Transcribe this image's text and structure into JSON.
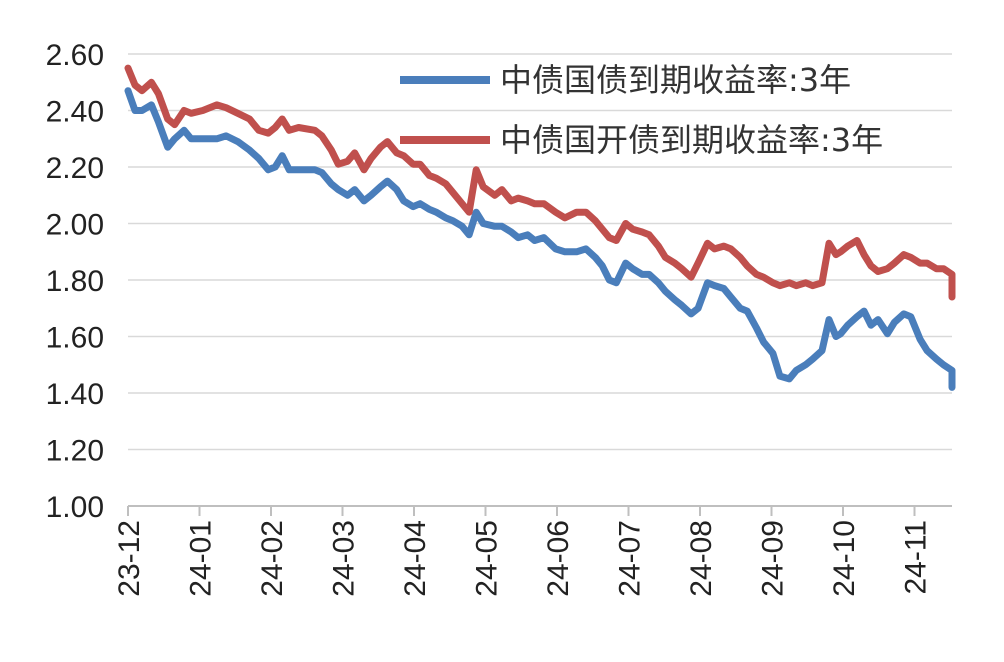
{
  "chart_data": {
    "type": "line",
    "title": "",
    "xlabel": "",
    "ylabel": "",
    "ylim": [
      1.0,
      2.6
    ],
    "yticks": [
      "1.00",
      "1.20",
      "1.40",
      "1.60",
      "1.80",
      "2.00",
      "2.20",
      "2.40",
      "2.60"
    ],
    "xticks": [
      "23-12",
      "24-01",
      "24-02",
      "24-03",
      "24-04",
      "24-05",
      "24-06",
      "24-07",
      "24-08",
      "24-09",
      "24-10",
      "24-11"
    ],
    "grid": true,
    "legend_position": "top-right",
    "series": [
      {
        "name": "中债国债到期收益率:3年",
        "color": "#4a7ebb",
        "points": [
          [
            "2023-12-01",
            2.47
          ],
          [
            "2023-12-04",
            2.4
          ],
          [
            "2023-12-07",
            2.4
          ],
          [
            "2023-12-11",
            2.42
          ],
          [
            "2023-12-14",
            2.36
          ],
          [
            "2023-12-18",
            2.27
          ],
          [
            "2023-12-21",
            2.3
          ],
          [
            "2023-12-25",
            2.33
          ],
          [
            "2023-12-28",
            2.3
          ],
          [
            "2024-01-02",
            2.3
          ],
          [
            "2024-01-08",
            2.3
          ],
          [
            "2024-01-12",
            2.31
          ],
          [
            "2024-01-17",
            2.29
          ],
          [
            "2024-01-22",
            2.26
          ],
          [
            "2024-01-26",
            2.23
          ],
          [
            "2024-01-30",
            2.19
          ],
          [
            "2024-02-02",
            2.2
          ],
          [
            "2024-02-05",
            2.24
          ],
          [
            "2024-02-08",
            2.19
          ],
          [
            "2024-02-12",
            2.19
          ],
          [
            "2024-02-19",
            2.19
          ],
          [
            "2024-02-22",
            2.18
          ],
          [
            "2024-02-26",
            2.14
          ],
          [
            "2024-02-29",
            2.12
          ],
          [
            "2024-03-04",
            2.1
          ],
          [
            "2024-03-07",
            2.12
          ],
          [
            "2024-03-11",
            2.08
          ],
          [
            "2024-03-14",
            2.1
          ],
          [
            "2024-03-18",
            2.13
          ],
          [
            "2024-03-21",
            2.15
          ],
          [
            "2024-03-25",
            2.12
          ],
          [
            "2024-03-28",
            2.08
          ],
          [
            "2024-04-01",
            2.06
          ],
          [
            "2024-04-04",
            2.07
          ],
          [
            "2024-04-08",
            2.05
          ],
          [
            "2024-04-11",
            2.04
          ],
          [
            "2024-04-15",
            2.02
          ],
          [
            "2024-04-18",
            2.01
          ],
          [
            "2024-04-22",
            1.99
          ],
          [
            "2024-04-25",
            1.96
          ],
          [
            "2024-04-28",
            2.04
          ],
          [
            "2024-05-01",
            2.0
          ],
          [
            "2024-05-06",
            1.99
          ],
          [
            "2024-05-09",
            1.99
          ],
          [
            "2024-05-13",
            1.97
          ],
          [
            "2024-05-16",
            1.95
          ],
          [
            "2024-05-20",
            1.96
          ],
          [
            "2024-05-23",
            1.94
          ],
          [
            "2024-05-27",
            1.95
          ],
          [
            "2024-06-01",
            1.91
          ],
          [
            "2024-06-05",
            1.9
          ],
          [
            "2024-06-10",
            1.9
          ],
          [
            "2024-06-14",
            1.91
          ],
          [
            "2024-06-18",
            1.88
          ],
          [
            "2024-06-21",
            1.85
          ],
          [
            "2024-06-24",
            1.8
          ],
          [
            "2024-06-27",
            1.79
          ],
          [
            "2024-07-01",
            1.86
          ],
          [
            "2024-07-04",
            1.84
          ],
          [
            "2024-07-08",
            1.82
          ],
          [
            "2024-07-11",
            1.82
          ],
          [
            "2024-07-15",
            1.79
          ],
          [
            "2024-07-18",
            1.76
          ],
          [
            "2024-07-22",
            1.73
          ],
          [
            "2024-07-25",
            1.71
          ],
          [
            "2024-07-29",
            1.68
          ],
          [
            "2024-08-01",
            1.7
          ],
          [
            "2024-08-05",
            1.79
          ],
          [
            "2024-08-08",
            1.78
          ],
          [
            "2024-08-12",
            1.77
          ],
          [
            "2024-08-15",
            1.74
          ],
          [
            "2024-08-19",
            1.7
          ],
          [
            "2024-08-22",
            1.69
          ],
          [
            "2024-08-26",
            1.63
          ],
          [
            "2024-08-29",
            1.58
          ],
          [
            "2024-09-02",
            1.54
          ],
          [
            "2024-09-05",
            1.46
          ],
          [
            "2024-09-09",
            1.45
          ],
          [
            "2024-09-12",
            1.48
          ],
          [
            "2024-09-16",
            1.5
          ],
          [
            "2024-09-19",
            1.52
          ],
          [
            "2024-09-23",
            1.55
          ],
          [
            "2024-09-26",
            1.66
          ],
          [
            "2024-09-29",
            1.6
          ],
          [
            "2024-10-01",
            1.61
          ],
          [
            "2024-10-04",
            1.64
          ],
          [
            "2024-10-08",
            1.67
          ],
          [
            "2024-10-11",
            1.69
          ],
          [
            "2024-10-14",
            1.64
          ],
          [
            "2024-10-17",
            1.66
          ],
          [
            "2024-10-21",
            1.61
          ],
          [
            "2024-10-24",
            1.65
          ],
          [
            "2024-10-28",
            1.68
          ],
          [
            "2024-10-31",
            1.67
          ],
          [
            "2024-11-04",
            1.59
          ],
          [
            "2024-11-07",
            1.55
          ],
          [
            "2024-11-11",
            1.52
          ],
          [
            "2024-11-14",
            1.5
          ],
          [
            "2024-11-18",
            1.48
          ],
          [
            "2024-11-21",
            1.46
          ],
          [
            "2024-11-25",
            1.45
          ],
          [
            "2024-11-28",
            1.46
          ],
          [
            "2024-12-02",
            1.42
          ]
        ]
      },
      {
        "name": "中债国开债到期收益率:3年",
        "color": "#c0504d",
        "points": [
          [
            "2023-12-01",
            2.55
          ],
          [
            "2023-12-04",
            2.49
          ],
          [
            "2023-12-07",
            2.47
          ],
          [
            "2023-12-11",
            2.5
          ],
          [
            "2023-12-14",
            2.46
          ],
          [
            "2023-12-18",
            2.37
          ],
          [
            "2023-12-21",
            2.35
          ],
          [
            "2023-12-25",
            2.4
          ],
          [
            "2023-12-28",
            2.39
          ],
          [
            "2024-01-02",
            2.4
          ],
          [
            "2024-01-08",
            2.42
          ],
          [
            "2024-01-12",
            2.41
          ],
          [
            "2024-01-17",
            2.39
          ],
          [
            "2024-01-22",
            2.37
          ],
          [
            "2024-01-26",
            2.33
          ],
          [
            "2024-01-30",
            2.32
          ],
          [
            "2024-02-02",
            2.34
          ],
          [
            "2024-02-05",
            2.37
          ],
          [
            "2024-02-08",
            2.33
          ],
          [
            "2024-02-12",
            2.34
          ],
          [
            "2024-02-19",
            2.33
          ],
          [
            "2024-02-22",
            2.31
          ],
          [
            "2024-02-26",
            2.26
          ],
          [
            "2024-02-29",
            2.21
          ],
          [
            "2024-03-04",
            2.22
          ],
          [
            "2024-03-07",
            2.25
          ],
          [
            "2024-03-11",
            2.19
          ],
          [
            "2024-03-14",
            2.23
          ],
          [
            "2024-03-18",
            2.27
          ],
          [
            "2024-03-21",
            2.29
          ],
          [
            "2024-03-25",
            2.25
          ],
          [
            "2024-03-28",
            2.24
          ],
          [
            "2024-04-01",
            2.21
          ],
          [
            "2024-04-04",
            2.21
          ],
          [
            "2024-04-08",
            2.17
          ],
          [
            "2024-04-11",
            2.16
          ],
          [
            "2024-04-15",
            2.14
          ],
          [
            "2024-04-18",
            2.11
          ],
          [
            "2024-04-22",
            2.07
          ],
          [
            "2024-04-25",
            2.04
          ],
          [
            "2024-04-28",
            2.19
          ],
          [
            "2024-05-01",
            2.13
          ],
          [
            "2024-05-06",
            2.1
          ],
          [
            "2024-05-09",
            2.12
          ],
          [
            "2024-05-13",
            2.08
          ],
          [
            "2024-05-16",
            2.09
          ],
          [
            "2024-05-20",
            2.08
          ],
          [
            "2024-05-23",
            2.07
          ],
          [
            "2024-05-27",
            2.07
          ],
          [
            "2024-06-01",
            2.04
          ],
          [
            "2024-06-05",
            2.02
          ],
          [
            "2024-06-10",
            2.04
          ],
          [
            "2024-06-14",
            2.04
          ],
          [
            "2024-06-18",
            2.01
          ],
          [
            "2024-06-21",
            1.98
          ],
          [
            "2024-06-24",
            1.95
          ],
          [
            "2024-06-27",
            1.94
          ],
          [
            "2024-07-01",
            2.0
          ],
          [
            "2024-07-04",
            1.98
          ],
          [
            "2024-07-08",
            1.97
          ],
          [
            "2024-07-11",
            1.96
          ],
          [
            "2024-07-15",
            1.92
          ],
          [
            "2024-07-18",
            1.88
          ],
          [
            "2024-07-22",
            1.86
          ],
          [
            "2024-07-25",
            1.84
          ],
          [
            "2024-07-29",
            1.81
          ],
          [
            "2024-08-01",
            1.86
          ],
          [
            "2024-08-05",
            1.93
          ],
          [
            "2024-08-08",
            1.91
          ],
          [
            "2024-08-12",
            1.92
          ],
          [
            "2024-08-15",
            1.91
          ],
          [
            "2024-08-19",
            1.88
          ],
          [
            "2024-08-22",
            1.85
          ],
          [
            "2024-08-26",
            1.82
          ],
          [
            "2024-08-29",
            1.81
          ],
          [
            "2024-09-02",
            1.79
          ],
          [
            "2024-09-05",
            1.78
          ],
          [
            "2024-09-09",
            1.79
          ],
          [
            "2024-09-12",
            1.78
          ],
          [
            "2024-09-16",
            1.79
          ],
          [
            "2024-09-19",
            1.78
          ],
          [
            "2024-09-23",
            1.79
          ],
          [
            "2024-09-26",
            1.93
          ],
          [
            "2024-09-29",
            1.89
          ],
          [
            "2024-10-01",
            1.9
          ],
          [
            "2024-10-04",
            1.92
          ],
          [
            "2024-10-08",
            1.94
          ],
          [
            "2024-10-11",
            1.89
          ],
          [
            "2024-10-14",
            1.85
          ],
          [
            "2024-10-17",
            1.83
          ],
          [
            "2024-10-21",
            1.84
          ],
          [
            "2024-10-24",
            1.86
          ],
          [
            "2024-10-28",
            1.89
          ],
          [
            "2024-10-31",
            1.88
          ],
          [
            "2024-11-04",
            1.86
          ],
          [
            "2024-11-07",
            1.86
          ],
          [
            "2024-11-11",
            1.84
          ],
          [
            "2024-11-14",
            1.84
          ],
          [
            "2024-11-18",
            1.82
          ],
          [
            "2024-11-21",
            1.81
          ],
          [
            "2024-11-25",
            1.81
          ],
          [
            "2024-11-28",
            1.8
          ],
          [
            "2024-12-02",
            1.74
          ]
        ]
      }
    ]
  }
}
